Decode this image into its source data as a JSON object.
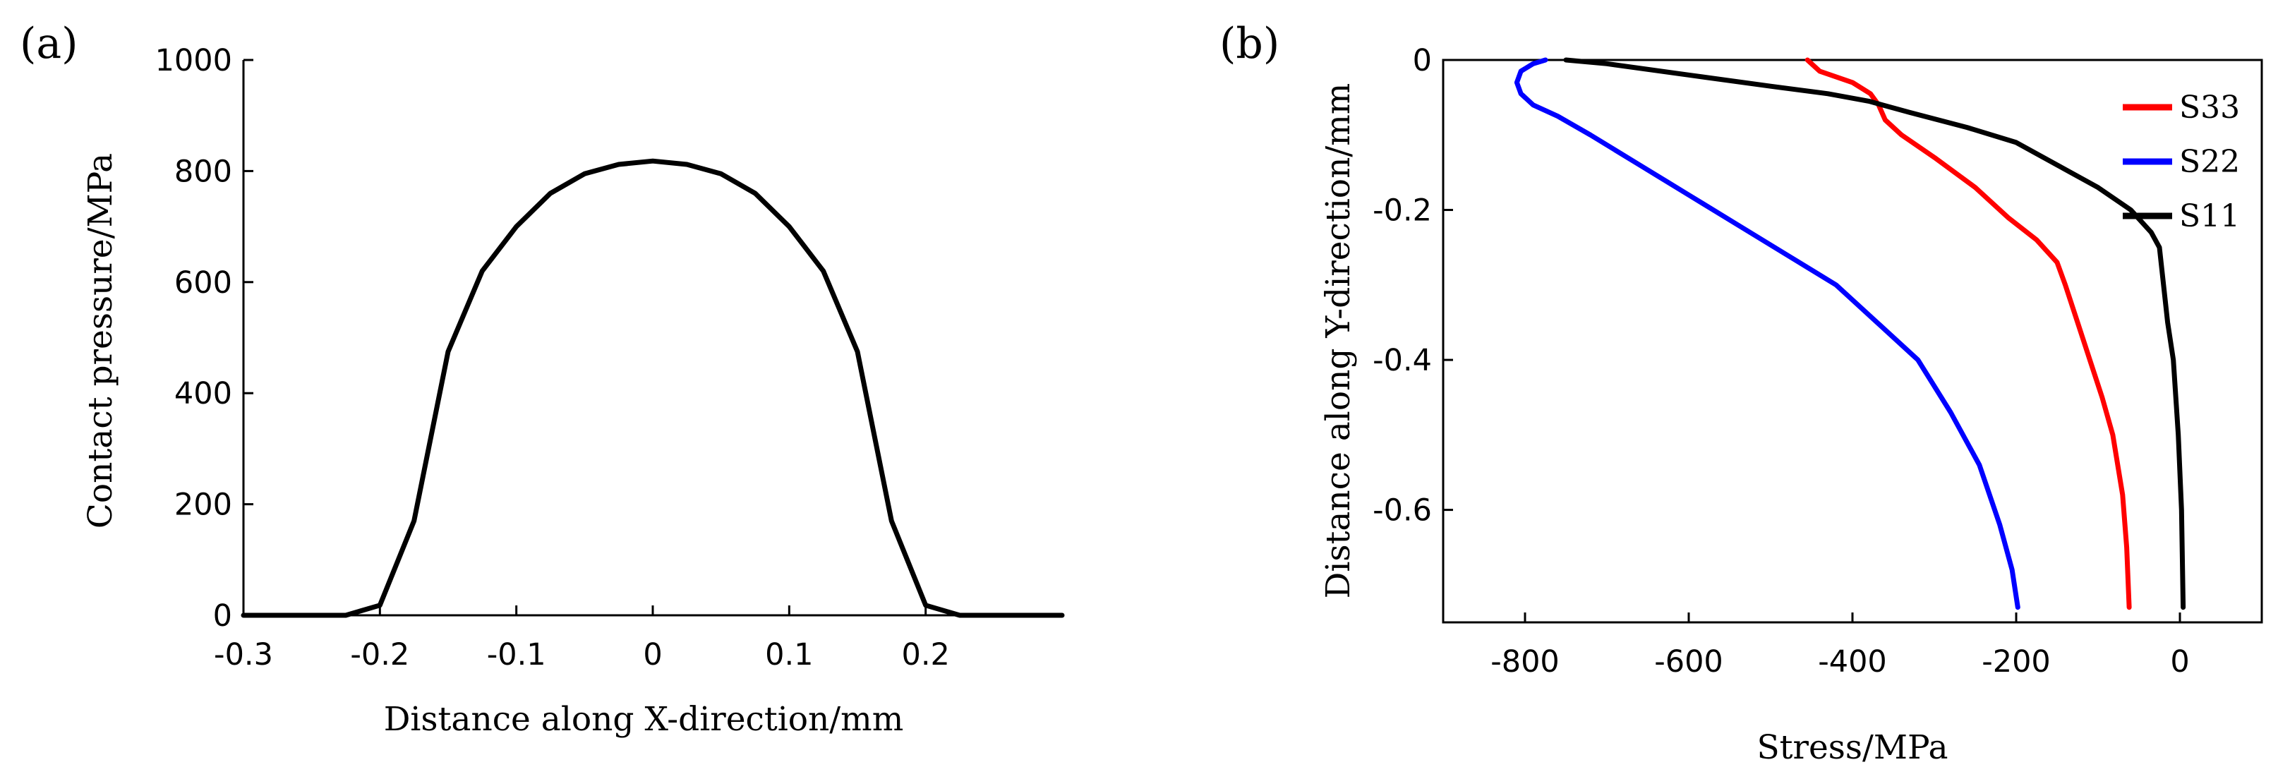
{
  "chart_data": [
    {
      "panel": "(a)",
      "type": "line",
      "xlabel": "Distance along X-direction/mm",
      "ylabel": "Contact pressure/MPa",
      "xlim": [
        -0.3,
        0.3
      ],
      "ylim": [
        0,
        1000
      ],
      "xticks": [
        -0.3,
        -0.2,
        -0.1,
        0,
        0.1,
        0.2
      ],
      "xtick_labels": [
        "-0.3",
        "-0.2",
        "-0.1",
        "0",
        "0.1",
        "0.2"
      ],
      "yticks": [
        0,
        200,
        400,
        600,
        800,
        1000
      ],
      "ytick_labels": [
        "0",
        "200",
        "400",
        "600",
        "800",
        "1000"
      ],
      "series": [
        {
          "name": "Contact pressure",
          "color": "#000000",
          "x": [
            -0.3,
            -0.225,
            -0.2,
            -0.175,
            -0.15,
            -0.125,
            -0.1,
            -0.075,
            -0.05,
            -0.025,
            0,
            0.025,
            0.05,
            0.075,
            0.1,
            0.125,
            0.15,
            0.175,
            0.2,
            0.225,
            0.3
          ],
          "y": [
            0,
            0,
            18,
            170,
            475,
            620,
            700,
            760,
            795,
            812,
            818,
            812,
            795,
            760,
            700,
            620,
            475,
            170,
            18,
            0,
            0
          ]
        }
      ]
    },
    {
      "panel": "(b)",
      "type": "line",
      "xlabel": "Stress/MPa",
      "ylabel": "Distance along Y-direction/mm",
      "xlim": [
        -900,
        100
      ],
      "ylim": [
        -0.75,
        0
      ],
      "xticks": [
        -800,
        -600,
        -400,
        -200,
        0
      ],
      "xtick_labels": [
        "-800",
        "-600",
        "-400",
        "-200",
        "0"
      ],
      "yticks": [
        0,
        -0.2,
        -0.4,
        -0.6
      ],
      "ytick_labels": [
        "0",
        "-0.2",
        "-0.4",
        "-0.6"
      ],
      "legend_position": "top-right",
      "series": [
        {
          "name": "S33",
          "color": "#ff0000",
          "x": [
            -455,
            -440,
            -400,
            -378,
            -368,
            -360,
            -340,
            -300,
            -250,
            -210,
            -175,
            -150,
            -140,
            -125,
            -110,
            -95,
            -82,
            -70,
            -65,
            -62
          ],
          "y": [
            0,
            -0.015,
            -0.03,
            -0.045,
            -0.06,
            -0.08,
            -0.1,
            -0.13,
            -0.17,
            -0.21,
            -0.24,
            -0.27,
            -0.3,
            -0.35,
            -0.4,
            -0.45,
            -0.5,
            -0.58,
            -0.65,
            -0.73
          ]
        },
        {
          "name": "S22",
          "color": "#0000ff",
          "x": [
            -775,
            -790,
            -805,
            -810,
            -805,
            -790,
            -760,
            -720,
            -660,
            -600,
            -540,
            -480,
            -420,
            -370,
            -320,
            -280,
            -245,
            -220,
            -205,
            -198
          ],
          "y": [
            0,
            -0.005,
            -0.015,
            -0.03,
            -0.045,
            -0.06,
            -0.075,
            -0.1,
            -0.14,
            -0.18,
            -0.22,
            -0.26,
            -0.3,
            -0.35,
            -0.4,
            -0.47,
            -0.54,
            -0.62,
            -0.68,
            -0.73
          ]
        },
        {
          "name": "S11",
          "color": "#000000",
          "x": [
            -750,
            -700,
            -600,
            -500,
            -430,
            -380,
            -330,
            -260,
            -200,
            -150,
            -100,
            -60,
            -35,
            -25,
            -20,
            -15,
            -8,
            -2,
            2,
            4
          ],
          "y": [
            0,
            -0.005,
            -0.02,
            -0.035,
            -0.045,
            -0.055,
            -0.07,
            -0.09,
            -0.11,
            -0.14,
            -0.17,
            -0.2,
            -0.23,
            -0.25,
            -0.3,
            -0.35,
            -0.4,
            -0.5,
            -0.6,
            -0.73
          ]
        }
      ]
    }
  ]
}
